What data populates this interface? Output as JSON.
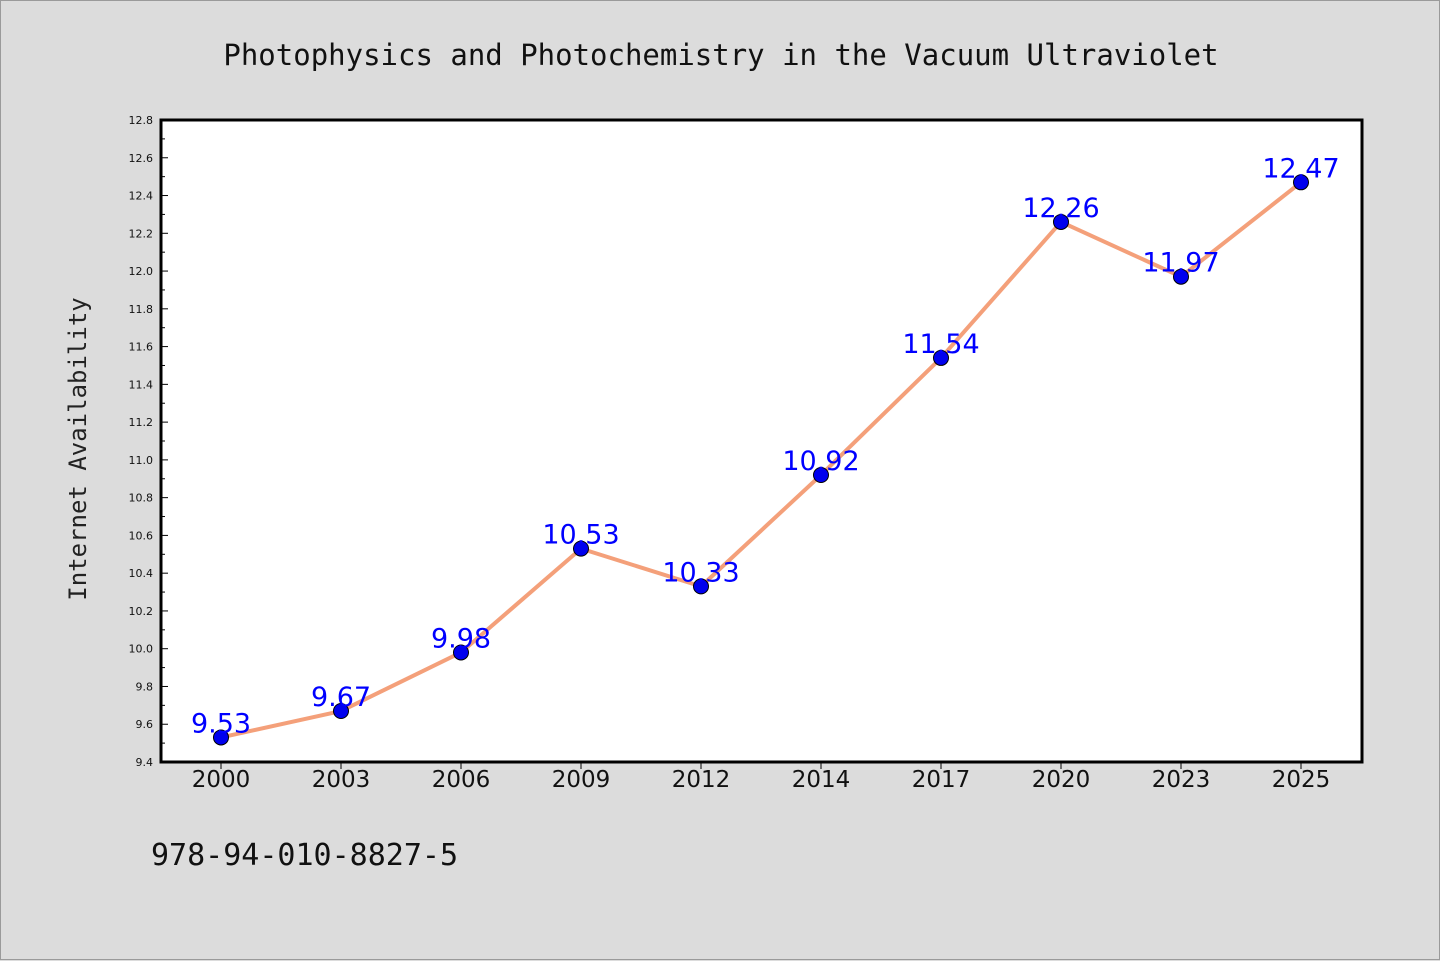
{
  "chart_data": {
    "type": "line",
    "title": "Photophysics and Photochemistry in the Vacuum Ultraviolet",
    "xlabel": "",
    "ylabel": "Internet Availability",
    "categories": [
      "2000",
      "2003",
      "2006",
      "2009",
      "2012",
      "2014",
      "2017",
      "2020",
      "2023",
      "2025"
    ],
    "series": [
      {
        "values": [
          9.53,
          9.67,
          9.98,
          10.53,
          10.33,
          10.92,
          11.54,
          12.26,
          11.97,
          12.47
        ]
      }
    ],
    "data_labels": [
      "9.53",
      "9.67",
      "9.98",
      "10.53",
      "10.33",
      "10.92",
      "11.54",
      "12.26",
      "11.97",
      "12.47"
    ],
    "ylim": [
      9.4,
      12.8
    ],
    "yticks": [
      "9.4",
      "9.6",
      "9.8",
      "10.0",
      "10.2",
      "10.4",
      "10.6",
      "10.8",
      "11.0",
      "11.2",
      "11.4",
      "11.6",
      "11.8",
      "12.0",
      "12.2",
      "12.4",
      "12.6",
      "12.8"
    ],
    "grid": false,
    "legend": "none",
    "colors": {
      "line": "#f4a07a",
      "marker": "#0000ee",
      "label": "#0000ff",
      "background": "#dcdcdc",
      "plot_background": "#ffffff"
    }
  },
  "footer": {
    "isbn": "978-94-010-8827-5"
  }
}
